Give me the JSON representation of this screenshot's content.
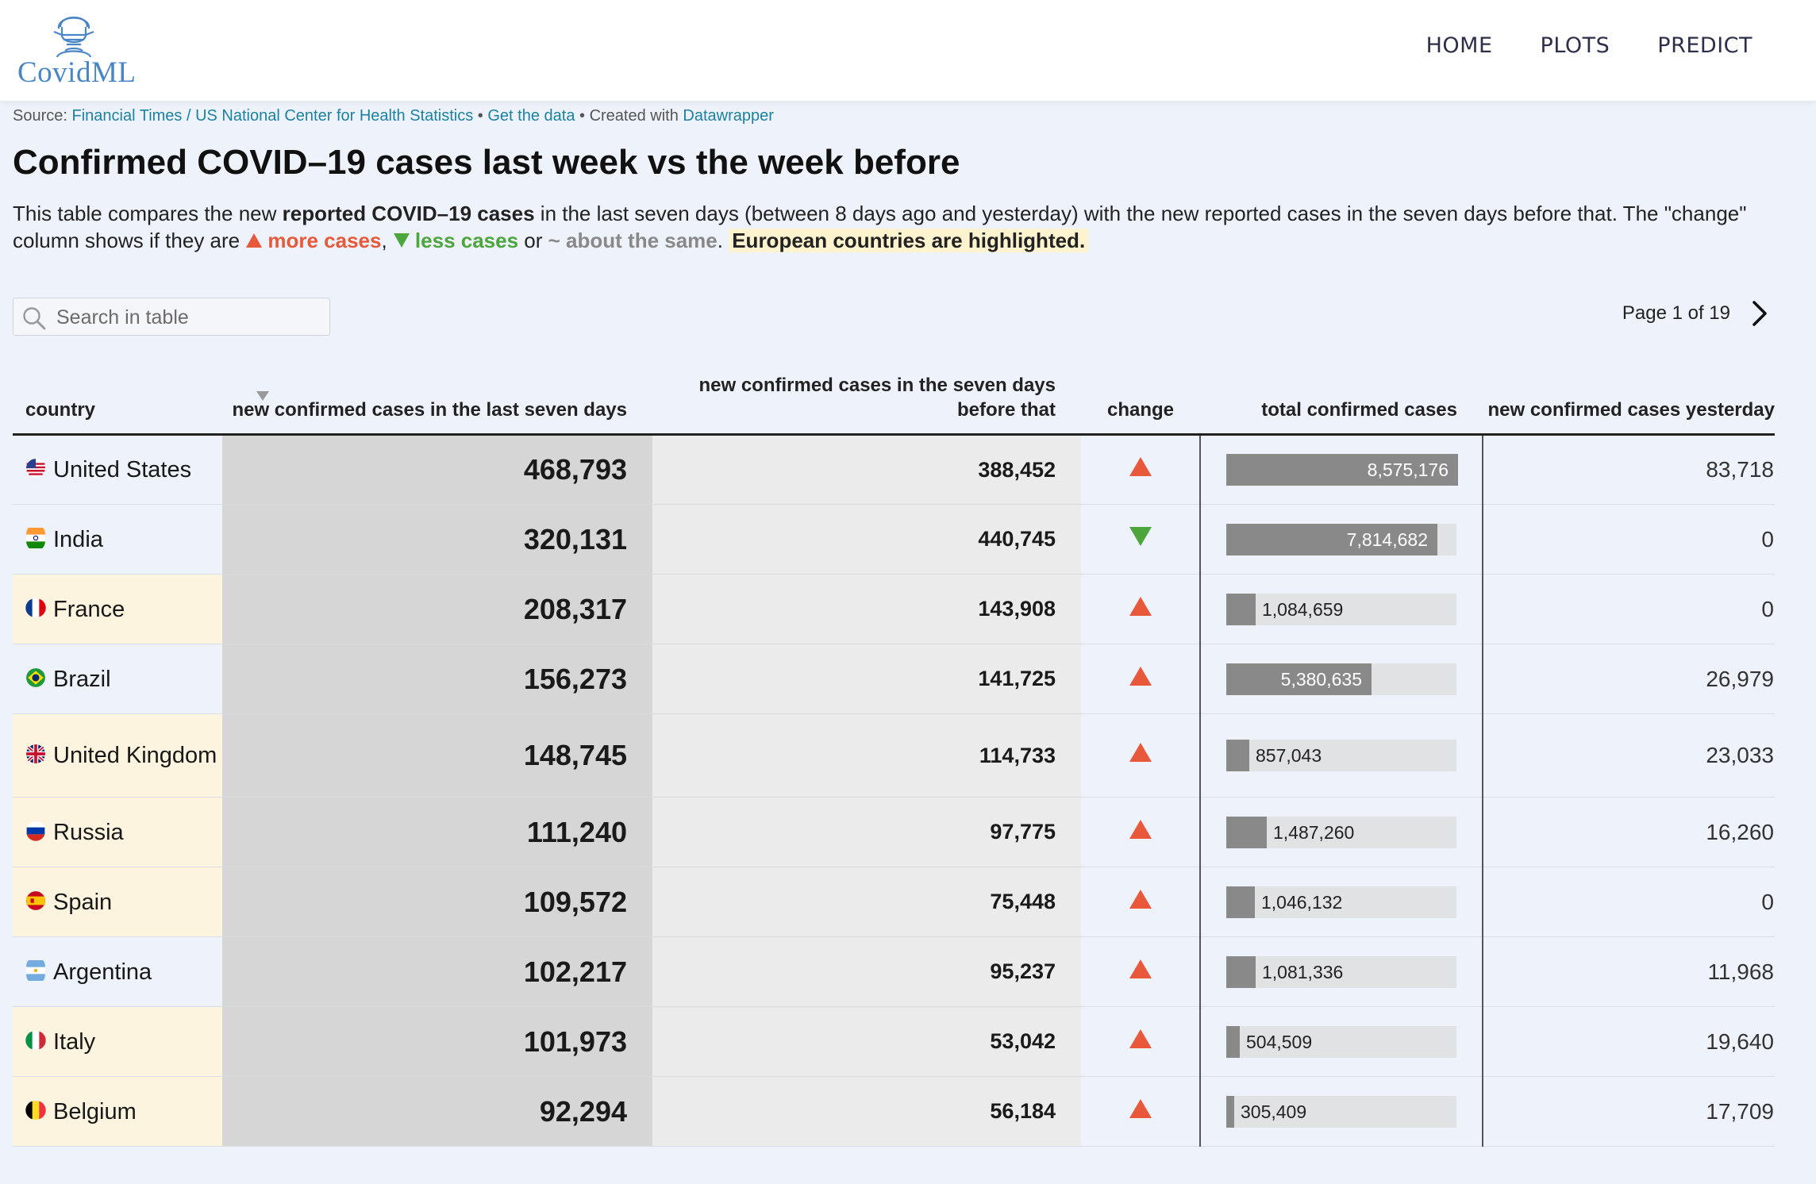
{
  "logo": {
    "text": "CovidML"
  },
  "nav": [
    {
      "label": "HOME"
    },
    {
      "label": "PLOTS"
    },
    {
      "label": "PREDICT"
    }
  ],
  "source": {
    "prefix": "Source: ",
    "link": "Financial Times / US National Center for Health Statistics",
    "sep1": " • ",
    "get_data": "Get the data",
    "sep2": " • Created with ",
    "tool": "Datawrapper"
  },
  "title": "Confirmed COVID–19 cases last week vs the week before",
  "description": {
    "part1": "This table compares the new ",
    "bold1": "reported COVID–19 cases",
    "part2": " in the last seven days (between 8 days ago and yesterday) with the new reported cases in the seven days before that. The \"change\" column shows if they are ",
    "more": "more cases",
    "comma": ", ",
    "less": "less cases",
    "or": " or ",
    "same": "~ about the same",
    "period": ". ",
    "highlight": "European countries are highlighted."
  },
  "search": {
    "placeholder": "Search in table",
    "value": ""
  },
  "pager": {
    "label": "Page 1 of 19"
  },
  "columns": {
    "country": "country",
    "last7": "new confirmed cases in the last seven days",
    "before7": "new confirmed cases in the seven days before that",
    "change": "change",
    "total": "total confirmed cases",
    "yesterday": "new confirmed cases yesterday"
  },
  "colors": {
    "up": "#e8583b",
    "down": "#4ca63c",
    "europe_highlight": "#fcf4df",
    "bar": "#898989"
  },
  "total_max": 8575176,
  "rows": [
    {
      "country": "United States",
      "flag": "us",
      "europe": false,
      "last7": "468,793",
      "before7": "388,452",
      "change": "up",
      "total": 8575176,
      "total_label": "8,575,176",
      "yesterday": "83,718"
    },
    {
      "country": "India",
      "flag": "in",
      "europe": false,
      "last7": "320,131",
      "before7": "440,745",
      "change": "down",
      "total": 7814682,
      "total_label": "7,814,682",
      "yesterday": "0"
    },
    {
      "country": "France",
      "flag": "fr",
      "europe": true,
      "last7": "208,317",
      "before7": "143,908",
      "change": "up",
      "total": 1084659,
      "total_label": "1,084,659",
      "yesterday": "0"
    },
    {
      "country": "Brazil",
      "flag": "br",
      "europe": false,
      "last7": "156,273",
      "before7": "141,725",
      "change": "up",
      "total": 5380635,
      "total_label": "5,380,635",
      "yesterday": "26,979"
    },
    {
      "country": "United Kingdom",
      "flag": "gb",
      "europe": true,
      "last7": "148,745",
      "before7": "114,733",
      "change": "up",
      "total": 857043,
      "total_label": "857,043",
      "yesterday": "23,033"
    },
    {
      "country": "Russia",
      "flag": "ru",
      "europe": true,
      "last7": "111,240",
      "before7": "97,775",
      "change": "up",
      "total": 1487260,
      "total_label": "1,487,260",
      "yesterday": "16,260"
    },
    {
      "country": "Spain",
      "flag": "es",
      "europe": true,
      "last7": "109,572",
      "before7": "75,448",
      "change": "up",
      "total": 1046132,
      "total_label": "1,046,132",
      "yesterday": "0"
    },
    {
      "country": "Argentina",
      "flag": "ar",
      "europe": false,
      "last7": "102,217",
      "before7": "95,237",
      "change": "up",
      "total": 1081336,
      "total_label": "1,081,336",
      "yesterday": "11,968"
    },
    {
      "country": "Italy",
      "flag": "it",
      "europe": true,
      "last7": "101,973",
      "before7": "53,042",
      "change": "up",
      "total": 504509,
      "total_label": "504,509",
      "yesterday": "19,640"
    },
    {
      "country": "Belgium",
      "flag": "be",
      "europe": true,
      "last7": "92,294",
      "before7": "56,184",
      "change": "up",
      "total": 305409,
      "total_label": "305,409",
      "yesterday": "17,709"
    }
  ]
}
